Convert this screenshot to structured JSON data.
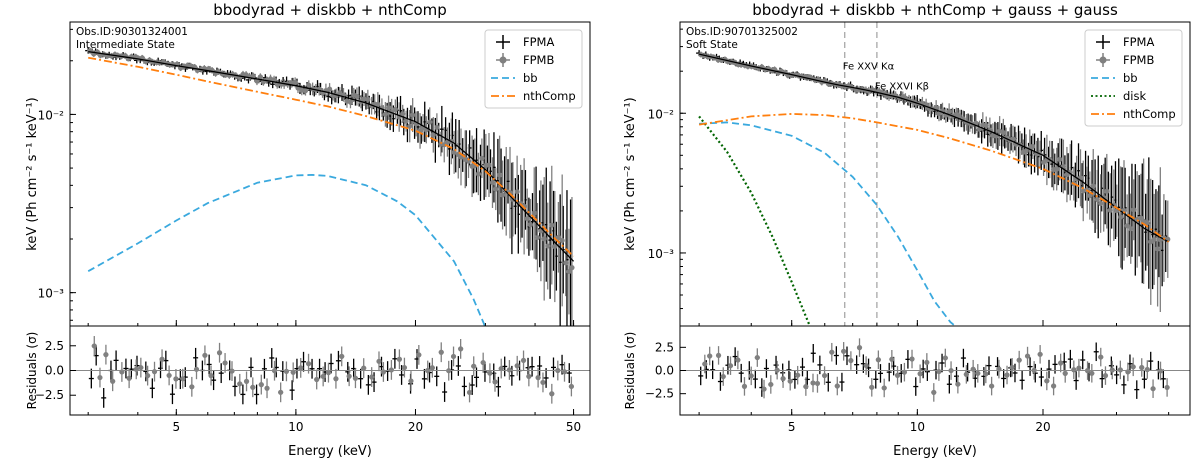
{
  "chart_data": [
    {
      "type": "line",
      "title": "bbodyrad + diskbb + nthComp",
      "annotation_lines": [
        "Obs.ID:90301324001",
        "Intermediate State"
      ],
      "xlabel": "Energy (keV)",
      "ylabel": "keV (Ph cm⁻² s⁻¹ keV⁻¹)",
      "xscale": "log",
      "yscale": "log",
      "xlim": [
        2.7,
        55
      ],
      "ylim": [
        0.00065,
        0.033
      ],
      "xticks": [
        5,
        10,
        20,
        50
      ],
      "xtick_labels": [
        "5",
        "10",
        "20",
        "50"
      ],
      "yticks": [
        0.001,
        0.01
      ],
      "ytick_labels": [
        "10⁻³",
        "10⁻²"
      ],
      "legend": [
        "FPMA",
        "FPMB",
        "bb",
        "nthComp"
      ],
      "legend_position": "top-right",
      "series": [
        {
          "name": "FPMA",
          "style": "data-cross",
          "color": "#000000",
          "x": [
            3,
            4,
            5,
            6,
            8,
            10,
            12,
            15,
            20,
            25,
            30,
            35,
            40,
            45,
            50
          ],
          "y": [
            0.0225,
            0.0205,
            0.0188,
            0.0176,
            0.0158,
            0.0145,
            0.0133,
            0.0116,
            0.0091,
            0.0069,
            0.0049,
            0.0034,
            0.0025,
            0.0019,
            0.0015
          ]
        },
        {
          "name": "FPMB",
          "style": "data-circle",
          "color": "#808080",
          "x": [
            3,
            4,
            5,
            6,
            8,
            10,
            12,
            15,
            20,
            25,
            30,
            35,
            40,
            45,
            50
          ],
          "y": [
            0.0225,
            0.0205,
            0.0188,
            0.0176,
            0.0158,
            0.0145,
            0.0133,
            0.0116,
            0.0091,
            0.0069,
            0.0049,
            0.0034,
            0.0025,
            0.0019,
            0.0015
          ]
        },
        {
          "name": "bb",
          "style": "dashed",
          "color": "#3aa9de",
          "x": [
            3,
            4,
            5,
            6,
            8,
            10,
            11,
            12,
            15,
            18,
            20,
            25,
            28,
            30
          ],
          "y": [
            0.00132,
            0.00189,
            0.00254,
            0.00318,
            0.00414,
            0.00455,
            0.00458,
            0.00452,
            0.00401,
            0.00325,
            0.00272,
            0.0015,
            0.00092,
            0.00064
          ]
        },
        {
          "name": "nthComp",
          "style": "dashdot",
          "color": "#ff7f0e",
          "x": [
            3,
            4,
            5,
            6,
            8,
            10,
            12,
            15,
            20,
            25,
            30,
            35,
            40,
            45,
            50
          ],
          "y": [
            0.0208,
            0.0185,
            0.0167,
            0.0153,
            0.0134,
            0.0121,
            0.0111,
            0.0098,
            0.0081,
            0.0064,
            0.0048,
            0.0035,
            0.0026,
            0.002,
            0.0016
          ]
        }
      ],
      "residuals": {
        "ylabel": "Residuals (σ)",
        "ylim": [
          -4.5,
          4.5
        ],
        "yticks": [
          -2.5,
          0.0,
          2.5
        ],
        "ytick_labels": [
          "−2.5",
          "0.0",
          "2.5"
        ]
      }
    },
    {
      "type": "line",
      "title": "bbodyrad + diskbb + nthComp + gauss + gauss",
      "annotation_lines": [
        "Obs.ID:90701325002",
        "Soft State"
      ],
      "xlabel": "Energy (keV)",
      "ylabel": "keV (Ph cm⁻² s⁻¹ keV⁻¹)",
      "xscale": "log",
      "yscale": "log",
      "xlim": [
        2.7,
        45
      ],
      "ylim": [
        0.0003,
        0.045
      ],
      "xticks": [
        5,
        10,
        20
      ],
      "xtick_labels": [
        "5",
        "10",
        "20"
      ],
      "yticks": [
        0.001,
        0.01
      ],
      "ytick_labels": [
        "10⁻³",
        "10⁻²"
      ],
      "legend": [
        "FPMA",
        "FPMB",
        "bb",
        "disk",
        "nthComp"
      ],
      "legend_position": "top-right",
      "line_markers": [
        {
          "x": 6.7,
          "label": "Fe XXV Kα"
        },
        {
          "x": 8.0,
          "label": "Fe XXVI Kβ"
        }
      ],
      "series": [
        {
          "name": "FPMA",
          "style": "data-cross",
          "color": "#000000",
          "x": [
            3,
            4,
            5,
            6,
            6.5,
            7,
            7.5,
            8,
            9,
            10,
            12,
            15,
            20,
            25,
            30,
            35,
            40
          ],
          "y": [
            0.0265,
            0.0218,
            0.0189,
            0.0167,
            0.0159,
            0.0153,
            0.0147,
            0.0141,
            0.013,
            0.0118,
            0.0097,
            0.0074,
            0.005,
            0.0032,
            0.0021,
            0.0015,
            0.0012
          ]
        },
        {
          "name": "FPMB",
          "style": "data-circle",
          "color": "#808080",
          "x": [
            3,
            4,
            5,
            6,
            6.5,
            7,
            7.5,
            8,
            9,
            10,
            12,
            15,
            20,
            25,
            30,
            35,
            40
          ],
          "y": [
            0.0265,
            0.0218,
            0.0189,
            0.0167,
            0.0159,
            0.0153,
            0.0147,
            0.0141,
            0.013,
            0.0118,
            0.0097,
            0.0074,
            0.005,
            0.0032,
            0.0021,
            0.0015,
            0.0012
          ]
        },
        {
          "name": "bb",
          "style": "dashed",
          "color": "#3aa9de",
          "x": [
            3,
            3.5,
            4,
            5,
            6,
            7,
            8,
            9,
            10,
            11,
            12,
            12.5
          ],
          "y": [
            0.0084,
            0.0086,
            0.0082,
            0.0069,
            0.0052,
            0.0035,
            0.0022,
            0.0013,
            0.00075,
            0.00045,
            0.00032,
            0.00029
          ]
        },
        {
          "name": "disk",
          "style": "dotted",
          "color": "#006400",
          "x": [
            3,
            3.5,
            4,
            4.5,
            5,
            5.5
          ],
          "y": [
            0.0095,
            0.0053,
            0.0027,
            0.0013,
            0.00062,
            0.00031
          ]
        },
        {
          "name": "nthComp",
          "style": "dashdot",
          "color": "#ff7f0e",
          "x": [
            3,
            4,
            5,
            6,
            7,
            8,
            10,
            12,
            15,
            20,
            25,
            30,
            35,
            40
          ],
          "y": [
            0.0083,
            0.0095,
            0.0099,
            0.0097,
            0.0092,
            0.0086,
            0.0076,
            0.0066,
            0.0054,
            0.004,
            0.0029,
            0.0021,
            0.0016,
            0.0012
          ]
        }
      ],
      "residuals": {
        "ylabel": "Residuals (σ)",
        "ylim": [
          -4.8,
          4.8
        ],
        "yticks": [
          -2.5,
          0.0,
          2.5
        ],
        "ytick_labels": [
          "−2.5",
          "0.0",
          "2.5"
        ]
      }
    }
  ]
}
